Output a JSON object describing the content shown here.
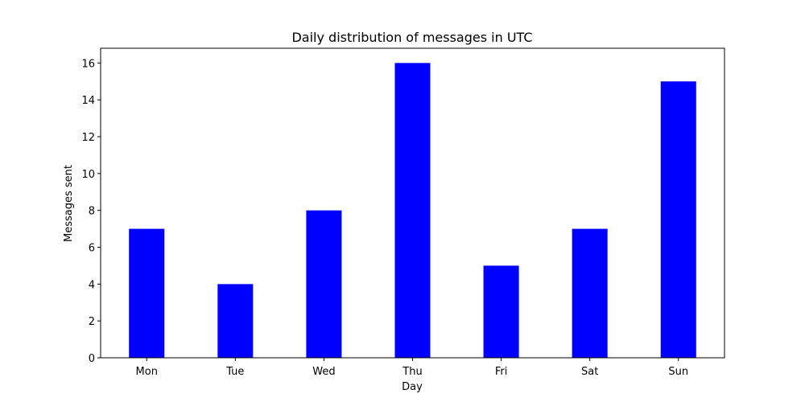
{
  "chart_data": {
    "type": "bar",
    "title": "Daily distribution of messages in UTC",
    "xlabel": "Day",
    "ylabel": "Messages sent",
    "categories": [
      "Mon",
      "Tue",
      "Wed",
      "Thu",
      "Fri",
      "Sat",
      "Sun"
    ],
    "values": [
      7,
      4,
      8,
      16,
      5,
      7,
      15
    ],
    "ylim": [
      0,
      16.8
    ],
    "yticks": [
      0,
      2,
      4,
      6,
      8,
      10,
      12,
      14,
      16
    ],
    "bar_color": "#0000ff",
    "grid": false,
    "legend": "none"
  }
}
